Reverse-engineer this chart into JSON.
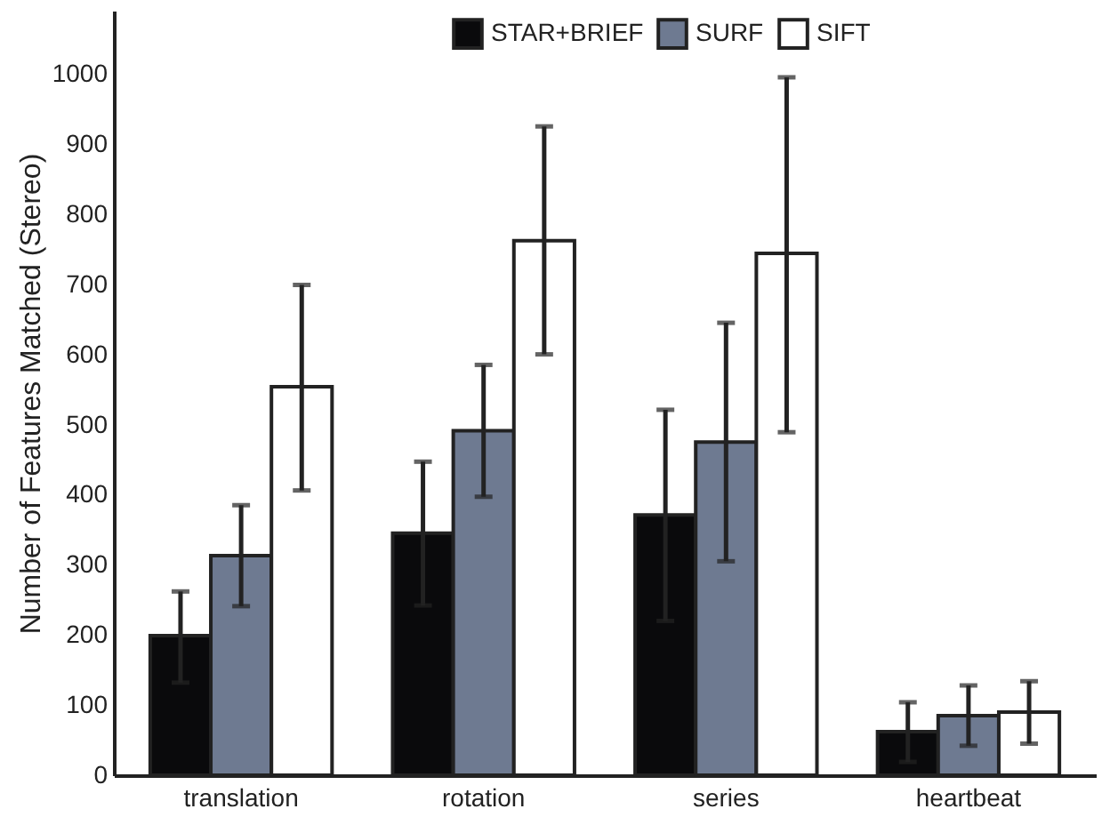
{
  "chart_data": {
    "type": "bar",
    "ylabel": "Number of Features Matched (Stereo)",
    "categories": [
      "translation",
      "rotation",
      "series",
      "heartbeat"
    ],
    "series": [
      {
        "name": "STAR+BRIEF",
        "color": "#0a0a0c",
        "values": [
          199,
          345,
          371,
          62
        ],
        "errors": [
          [
            132,
            262
          ],
          [
            242,
            447
          ],
          [
            220,
            521
          ],
          [
            19,
            104
          ]
        ]
      },
      {
        "name": "SURF",
        "color": "#6e7a91",
        "values": [
          313,
          491,
          475,
          85
        ],
        "errors": [
          [
            241,
            385
          ],
          [
            397,
            585
          ],
          [
            305,
            645
          ],
          [
            42,
            128
          ]
        ]
      },
      {
        "name": "SIFT",
        "color": "#ffffff",
        "values": [
          554,
          762,
          744,
          90
        ],
        "errors": [
          [
            406,
            699
          ],
          [
            600,
            925
          ],
          [
            489,
            995
          ],
          [
            45,
            134
          ]
        ]
      }
    ],
    "ylim": [
      0,
      1090
    ],
    "yticks": [
      0,
      100,
      200,
      300,
      400,
      500,
      600,
      700,
      800,
      900,
      1000
    ],
    "grid": false,
    "legend": "top"
  }
}
